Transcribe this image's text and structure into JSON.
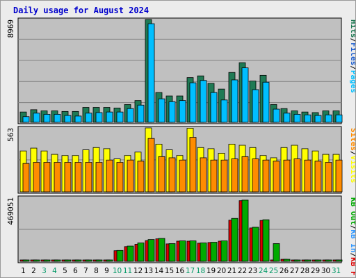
{
  "title": "Daily usage for August 2024",
  "colors": {
    "pages": "#00bfff",
    "files": "#1e5fd0",
    "hits": "#1f7a54",
    "visits": "#ffff00",
    "sites": "#ff8c00",
    "kb_in": "#3399ff",
    "kb_out": "#00aa00",
    "kb_f": "#dd0000",
    "panel_bg": "#c0c0c0",
    "weekend_label": "#009966",
    "weekday_label": "#000000"
  },
  "chart_data": [
    {
      "type": "bar",
      "panel": "top",
      "title": "Daily usage for August 2024",
      "ylabel_max": "8969",
      "ylim": [
        0,
        8969
      ],
      "grid": true,
      "legend": [
        "Pages",
        "Files",
        "Hits"
      ],
      "legend_separator": "/",
      "categories": [
        "1",
        "2",
        "3",
        "4",
        "5",
        "6",
        "7",
        "8",
        "9",
        "10",
        "11",
        "12",
        "13",
        "14",
        "15",
        "16",
        "17",
        "18",
        "19",
        "20",
        "21",
        "22",
        "23",
        "24",
        "25",
        "26",
        "27",
        "28",
        "29",
        "30",
        "31"
      ],
      "series": [
        {
          "name": "Hits",
          "values": [
            900,
            1100,
            1000,
            1000,
            950,
            950,
            1300,
            1300,
            1300,
            1250,
            1550,
            1900,
            8969,
            2600,
            2300,
            2300,
            3900,
            4050,
            3400,
            2900,
            4350,
            5200,
            3600,
            4100,
            1550,
            1200,
            1000,
            900,
            850,
            1000,
            1000
          ]
        },
        {
          "name": "Files",
          "values": [
            500,
            800,
            700,
            700,
            600,
            550,
            800,
            850,
            900,
            900,
            1200,
            1500,
            8600,
            2050,
            1800,
            1900,
            3450,
            3650,
            2600,
            1950,
            3700,
            4750,
            2850,
            3500,
            1150,
            800,
            700,
            650,
            600,
            650,
            650
          ]
        }
      ]
    },
    {
      "type": "bar",
      "panel": "middle",
      "ylabel_max": "563",
      "ylim": [
        0,
        563
      ],
      "grid": true,
      "legend": [
        "Visits",
        "Sites"
      ],
      "legend_separator": "/",
      "categories": [
        "1",
        "2",
        "3",
        "4",
        "5",
        "6",
        "7",
        "8",
        "9",
        "10",
        "11",
        "12",
        "13",
        "14",
        "15",
        "16",
        "17",
        "18",
        "19",
        "20",
        "21",
        "22",
        "23",
        "24",
        "25",
        "26",
        "27",
        "28",
        "29",
        "30",
        "31"
      ],
      "series": [
        {
          "name": "Visits",
          "values": [
            360,
            385,
            360,
            330,
            320,
            320,
            370,
            390,
            380,
            290,
            320,
            350,
            563,
            420,
            370,
            320,
            560,
            390,
            380,
            340,
            420,
            410,
            390,
            320,
            300,
            390,
            410,
            380,
            360,
            330,
            330
          ]
        },
        {
          "name": "Sites",
          "values": [
            250,
            260,
            260,
            260,
            260,
            260,
            260,
            260,
            280,
            260,
            280,
            270,
            470,
            310,
            300,
            280,
            480,
            300,
            280,
            280,
            290,
            310,
            290,
            280,
            270,
            280,
            290,
            280,
            270,
            260,
            280
          ]
        }
      ]
    },
    {
      "type": "bar",
      "panel": "bottom",
      "ylabel_max": "469051",
      "ylim": [
        0,
        469051
      ],
      "grid": true,
      "legend": [
        "KB F",
        "KB In",
        "KB Out"
      ],
      "legend_separator": "/",
      "categories": [
        "1",
        "2",
        "3",
        "4",
        "5",
        "6",
        "7",
        "8",
        "9",
        "10",
        "11",
        "12",
        "13",
        "14",
        "15",
        "16",
        "17",
        "18",
        "19",
        "20",
        "21",
        "22",
        "23",
        "24",
        "25",
        "26",
        "27",
        "28",
        "29",
        "30",
        "31"
      ],
      "series": [
        {
          "name": "KB F",
          "values": [
            8000,
            8000,
            8000,
            8000,
            8000,
            10000,
            10000,
            10000,
            10000,
            78000,
            108000,
            125000,
            152000,
            165000,
            128000,
            148000,
            148000,
            133000,
            138000,
            148000,
            302000,
            445000,
            245000,
            300000,
            7000,
            15000,
            7000,
            8000,
            8000,
            8000,
            8000
          ]
        },
        {
          "name": "KB Out",
          "values": [
            8000,
            8000,
            8000,
            8000,
            8000,
            10000,
            10000,
            10000,
            10000,
            80000,
            112000,
            135000,
            160000,
            168000,
            130000,
            150000,
            150000,
            135000,
            140000,
            150000,
            315000,
            449000,
            250000,
            305000,
            130000,
            15000,
            7000,
            8000,
            8000,
            8000,
            8000
          ]
        }
      ]
    }
  ],
  "days": [
    "1",
    "2",
    "3",
    "4",
    "5",
    "6",
    "7",
    "8",
    "9",
    "10",
    "11",
    "12",
    "13",
    "14",
    "15",
    "16",
    "17",
    "18",
    "19",
    "20",
    "21",
    "22",
    "23",
    "24",
    "25",
    "26",
    "27",
    "28",
    "29",
    "30",
    "31"
  ],
  "weekend_days": [
    "3",
    "4",
    "10",
    "11",
    "17",
    "18",
    "24",
    "25",
    "31"
  ]
}
